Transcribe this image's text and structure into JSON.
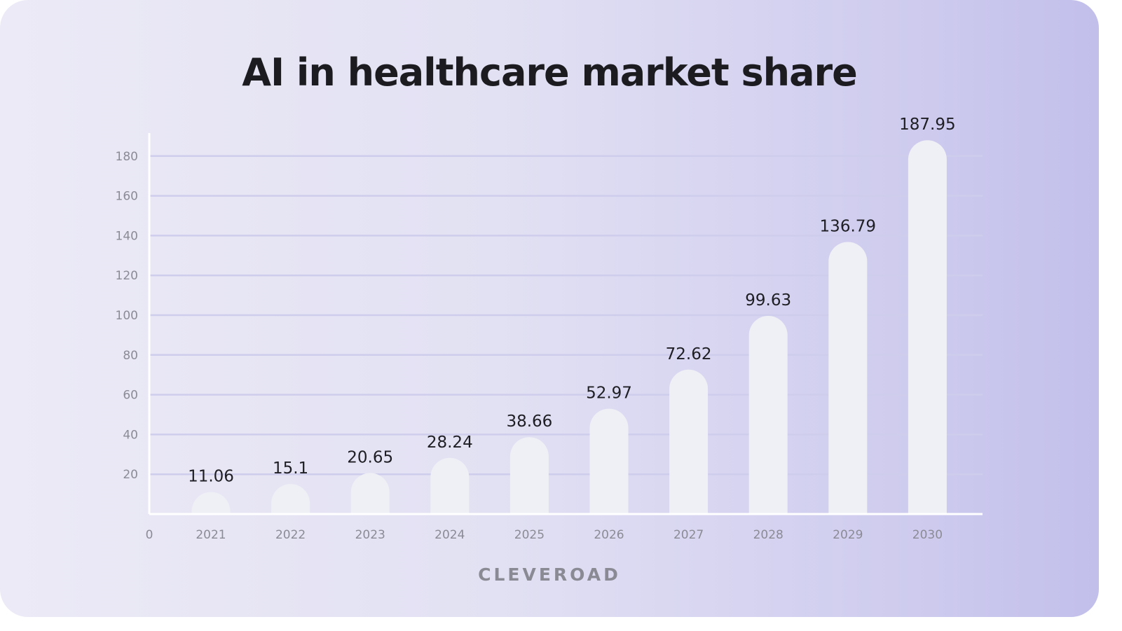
{
  "brand": "CLEVEROAD",
  "chart_data": {
    "type": "bar",
    "title": "AI in healthcare market share",
    "xlabel": "",
    "ylabel": "",
    "categories": [
      "2021",
      "2022",
      "2023",
      "2024",
      "2025",
      "2026",
      "2027",
      "2028",
      "2029",
      "2030"
    ],
    "values": [
      11.06,
      15.1,
      20.65,
      28.24,
      38.66,
      52.97,
      72.62,
      99.63,
      136.79,
      187.95
    ],
    "value_labels": [
      "11.06",
      "15.1",
      "20.65",
      "28.24",
      "38.66",
      "52.97",
      "72.62",
      "99.63",
      "136.79",
      "187.95"
    ],
    "ylim": [
      0,
      190
    ],
    "yticks": [
      20,
      40,
      60,
      80,
      100,
      120,
      140,
      160,
      180
    ],
    "origin_label": "0",
    "grid": true,
    "legend": "none",
    "colors": {
      "bar": "#eff0f5",
      "grid": "#cfcdec",
      "axis": "#ffffff"
    }
  }
}
